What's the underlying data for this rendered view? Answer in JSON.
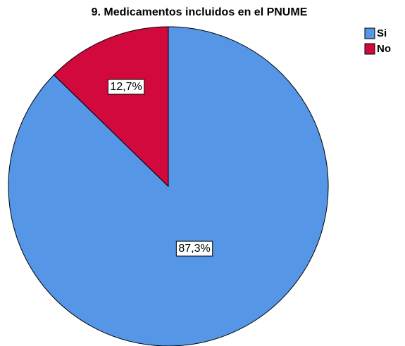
{
  "chart_data": {
    "type": "pie",
    "title": "9. Medicamentos incluidos en el PNUME",
    "categories": [
      "Si",
      "No"
    ],
    "values": [
      87.3,
      12.7
    ],
    "value_labels": [
      "87,3%",
      "12,7%"
    ],
    "colors": [
      "#5596e6",
      "#d2093c"
    ],
    "legend": "top-right"
  }
}
